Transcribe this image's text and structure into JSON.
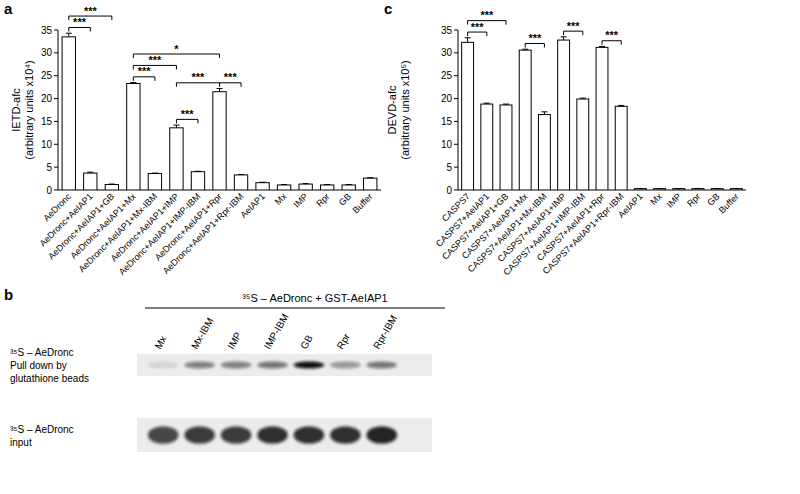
{
  "chart_data": [
    {
      "type": "bar",
      "panel": "a",
      "y_label": [
        "IETD-afc",
        "(arbitrary units x10⁴)"
      ],
      "categories": [
        "AeDronc",
        "AeDronc+AeIAP1",
        "AeDronc+AeIAP1+GB",
        "AeDronc+AeIAP1+Mx",
        "AeDronc+AeIAP1+Mx-IBM",
        "AeDronc+AeIAP1+IMP",
        "AeDronc+AeIAP1+IMP-IBM",
        "AeDronc+AeIAP1+Rpr",
        "AeDronc+AeIAP1+Rpr-IBM",
        "AeIAP1",
        "Mx",
        "IMP",
        "Rpr",
        "GB",
        "Buffer"
      ],
      "values": [
        33.5,
        3.7,
        1.2,
        23.3,
        3.6,
        13.6,
        4.0,
        21.5,
        3.3,
        1.6,
        1.1,
        1.3,
        1.1,
        1.1,
        2.6
      ],
      "errors": [
        0.8,
        0.2,
        0.1,
        0.2,
        0.1,
        0.6,
        0.1,
        0.7,
        0.1,
        0.1,
        0.1,
        0.1,
        0.1,
        0.1,
        0.1
      ],
      "color": "#ffffff",
      "ylim": [
        0,
        35
      ],
      "yticks": [
        0,
        5,
        10,
        15,
        20,
        25,
        30,
        35
      ],
      "grid": false,
      "significance": [
        {
          "label": "***",
          "from": "AeDronc",
          "to": "AeDronc+AeIAP1"
        },
        {
          "label": "***",
          "from": "AeDronc",
          "to": "AeDronc+AeIAP1+GB"
        },
        {
          "label": "*",
          "from": "AeDronc+AeIAP1+Mx",
          "to": "AeDronc+AeIAP1+Rpr"
        },
        {
          "label": "***",
          "from": "AeDronc+AeIAP1+Mx",
          "to": "AeDronc+AeIAP1+Mx-IBM"
        },
        {
          "label": "***",
          "from": "AeDronc+AeIAP1+Mx",
          "to": "AeDronc+AeIAP1+IMP"
        },
        {
          "label": "***",
          "from": "AeDronc+AeIAP1+IMP",
          "to": "AeDronc+AeIAP1+IMP-IBM"
        },
        {
          "label": "***",
          "from": "AeDronc+AeIAP1+IMP",
          "to": "AeDronc+AeIAP1+Rpr"
        },
        {
          "label": "***",
          "from": "AeDronc+AeIAP1+Rpr",
          "to": "AeDronc+AeIAP1+Rpr-IBM"
        }
      ]
    },
    {
      "type": "blot",
      "panel": "b",
      "title": "³⁵S – AeDronc + GST-AeIAP1",
      "lanes": [
        "Mx",
        "Mx-IBM",
        "IMP",
        "IMP-IBM",
        "GB",
        "Rpr",
        "Rpr-IBM"
      ],
      "rows": [
        {
          "label": [
            "³⁵S – AeDronc",
            "Pull down by",
            "glutathione beads"
          ],
          "values": [
            0.1,
            0.5,
            0.5,
            0.55,
            1.0,
            0.4,
            0.55
          ]
        },
        {
          "label": [
            "³⁵S – AeDronc",
            "input"
          ],
          "values": [
            0.75,
            0.8,
            0.8,
            0.85,
            0.85,
            0.85,
            0.9
          ]
        }
      ]
    },
    {
      "type": "bar",
      "panel": "c",
      "y_label": [
        "DEVD-afc",
        "(arbitrary units x10⁵)"
      ],
      "categories": [
        "CASPS7",
        "CASPS7+AeIAP1",
        "CASPS7+AeIAP1+GB",
        "CASPS7+AeIAP1+Mx",
        "CASPS7+AeIAP1+Mx-IBM",
        "CASPS7+AeIAP1+IMP",
        "CASPS7+AeIAP1+IMP-IBM",
        "CASPS7+AeIAP1+Rpr",
        "CASPS7+AeIAP1+Rpr-IBM",
        "AeIAP1",
        "Mx",
        "IMP",
        "Rpr",
        "GB",
        "Buffer"
      ],
      "values": [
        32.3,
        18.8,
        18.6,
        30.6,
        16.5,
        32.8,
        19.9,
        31.2,
        18.3,
        0.3,
        0.3,
        0.3,
        0.3,
        0.3,
        0.3
      ],
      "errors": [
        1.0,
        0.2,
        0.2,
        0.2,
        0.6,
        0.7,
        0.2,
        0.2,
        0.2,
        0,
        0,
        0,
        0,
        0,
        0
      ],
      "color": "#ffffff",
      "ylim": [
        0,
        35
      ],
      "yticks": [
        0,
        5,
        10,
        15,
        20,
        25,
        30,
        35
      ],
      "grid": false,
      "significance": [
        {
          "label": "***",
          "from": "CASPS7",
          "to": "CASPS7+AeIAP1"
        },
        {
          "label": "***",
          "from": "CASPS7",
          "to": "CASPS7+AeIAP1+GB"
        },
        {
          "label": "***",
          "from": "CASPS7+AeIAP1+Mx",
          "to": "CASPS7+AeIAP1+Mx-IBM"
        },
        {
          "label": "***",
          "from": "CASPS7+AeIAP1+IMP",
          "to": "CASPS7+AeIAP1+IMP-IBM"
        },
        {
          "label": "***",
          "from": "CASPS7+AeIAP1+Rpr",
          "to": "CASPS7+AeIAP1+Rpr-IBM"
        }
      ]
    }
  ]
}
